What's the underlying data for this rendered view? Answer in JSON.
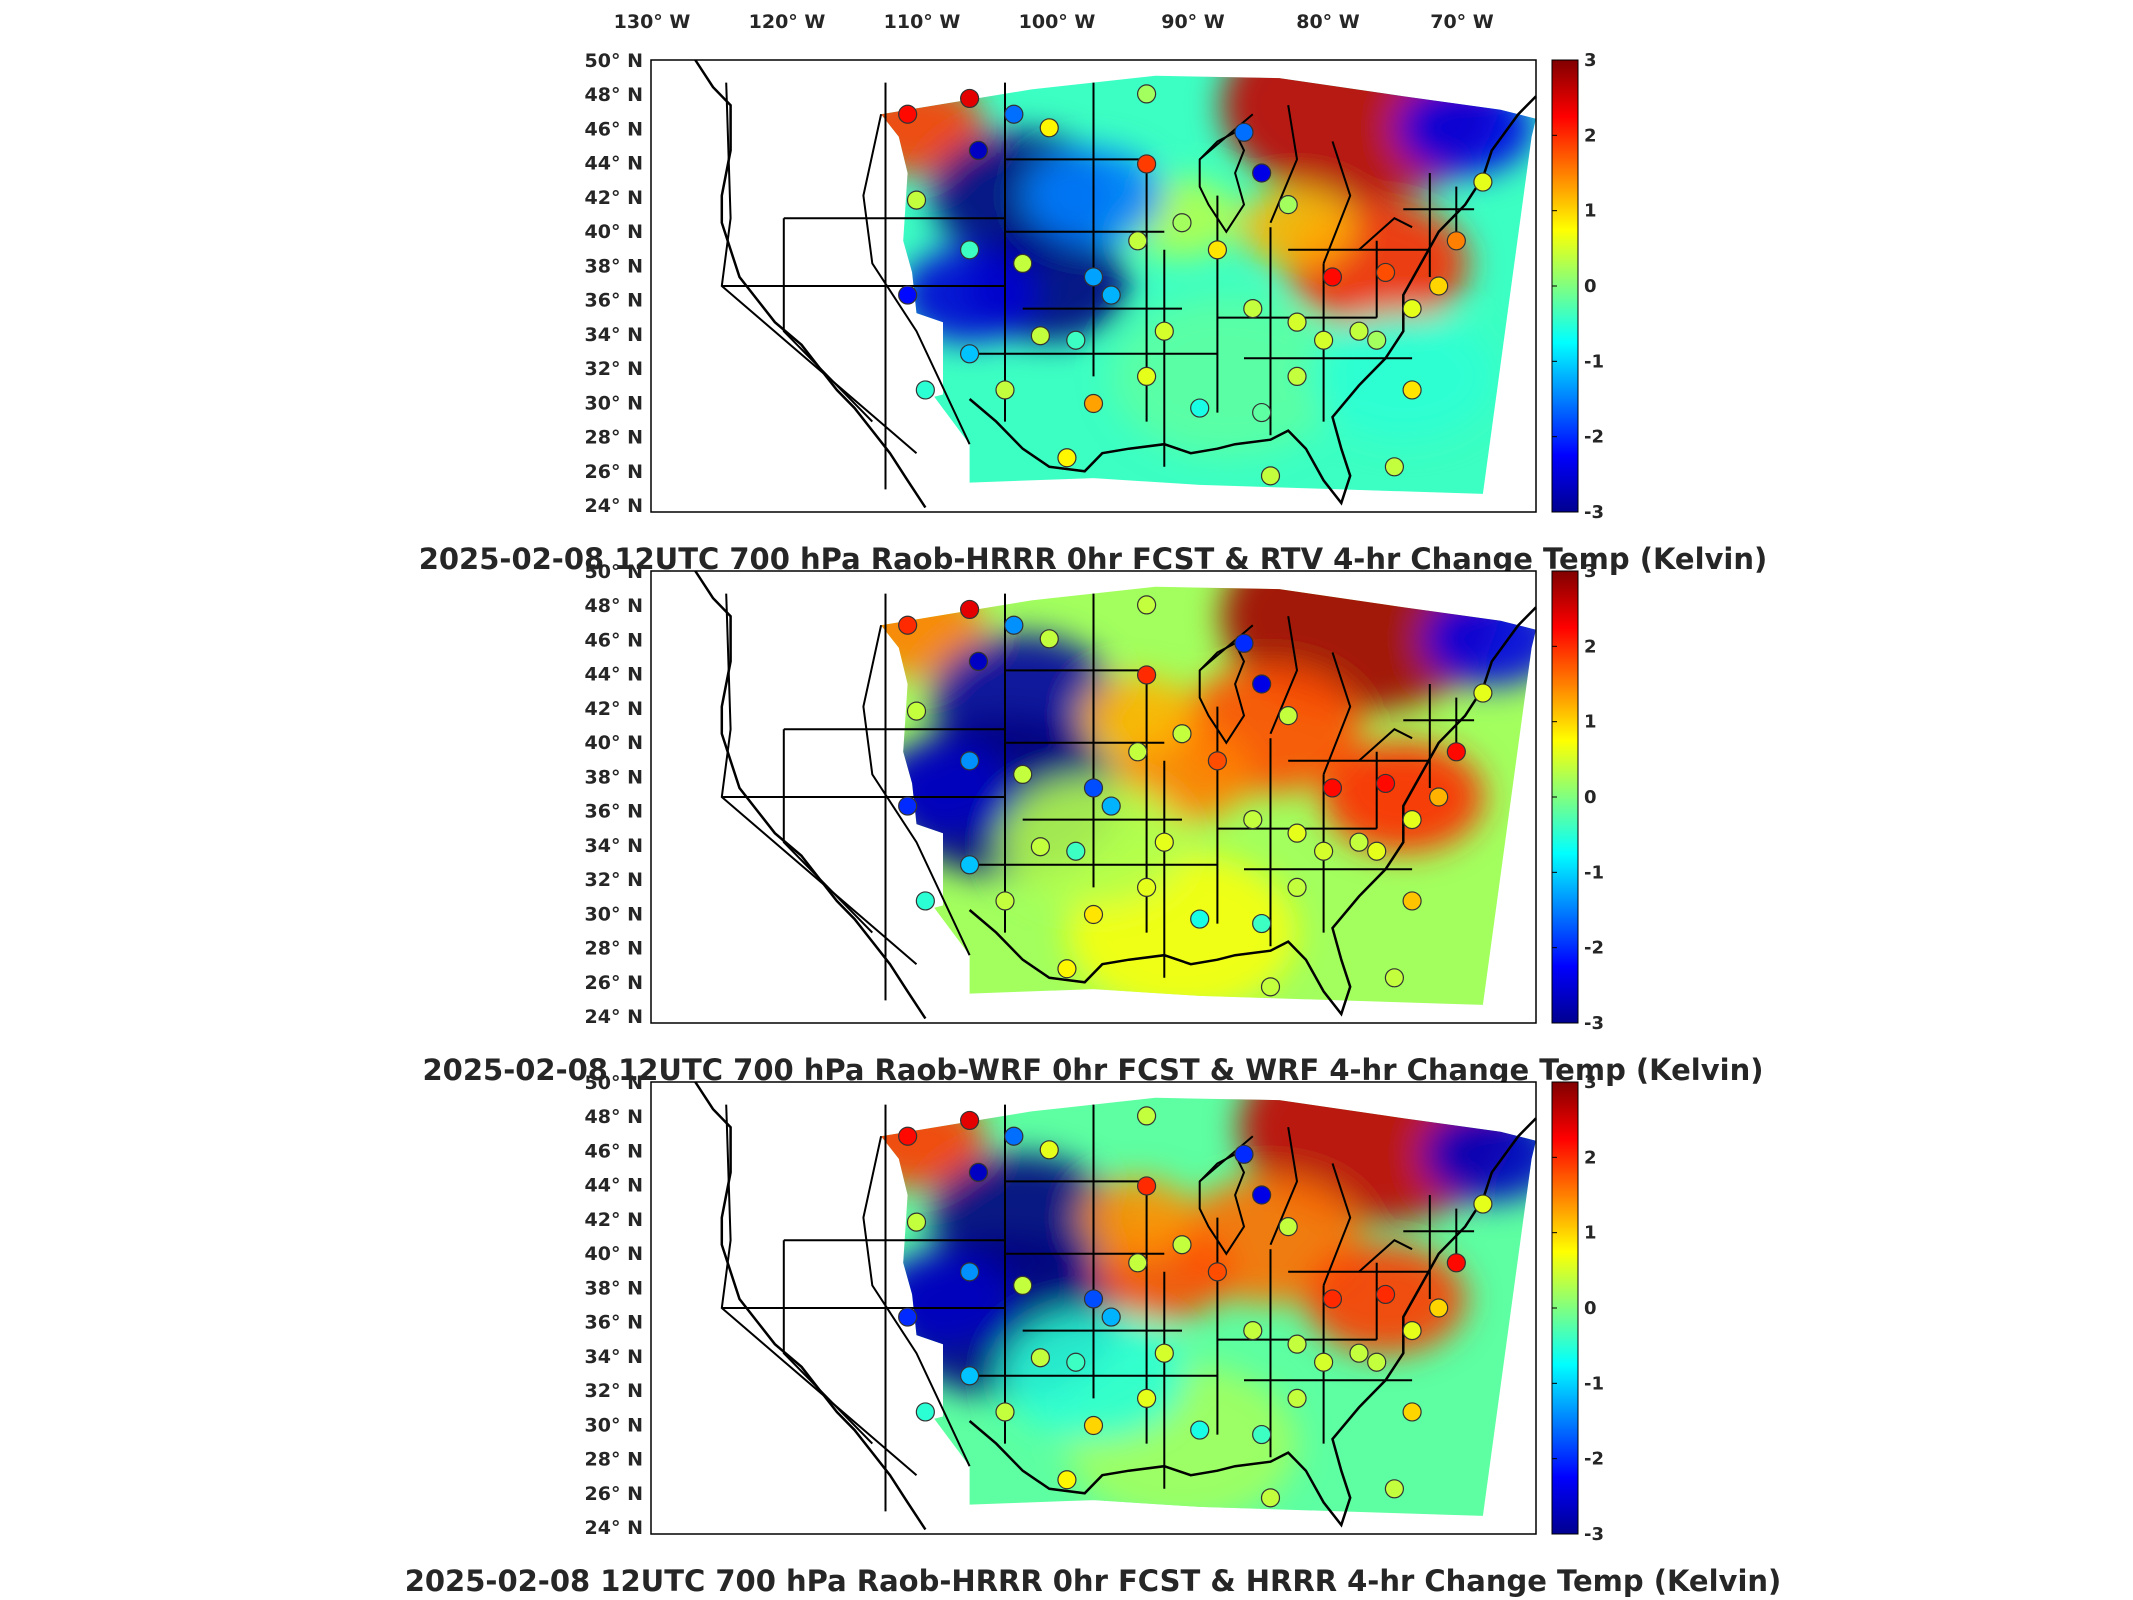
{
  "longitude_labels": [
    "130° W",
    "120° W",
    "110° W",
    "100° W",
    "90° W",
    "80° W",
    "70° W"
  ],
  "latitude_labels": [
    "50° N",
    "48° N",
    "46° N",
    "44° N",
    "42° N",
    "40° N",
    "38° N",
    "36° N",
    "34° N",
    "32° N",
    "30° N",
    "28° N",
    "26° N",
    "24° N"
  ],
  "colorbar": {
    "ticks": [
      "3",
      "2",
      "1",
      "0",
      "-1",
      "-2",
      "-3"
    ],
    "min": -3,
    "max": 3,
    "colormap": "jet"
  },
  "panels": [
    {
      "title": "2025-02-08 12UTC 700 hPa Raob-HRRR 0hr FCST & RTV 4-hr Change Temp (Kelvin)",
      "variant": "rtv"
    },
    {
      "title": "2025-02-08 12UTC 700 hPa Raob-WRF 0hr FCST & WRF 4-hr Change Temp (Kelvin)",
      "variant": "wrf"
    },
    {
      "title": "2025-02-08 12UTC 700 hPa Raob-HRRR 0hr FCST & HRRR 4-hr Change Temp (Kelvin)",
      "variant": "hrrr"
    }
  ],
  "colors": {
    "text": "#262626",
    "border": "#000000"
  }
}
